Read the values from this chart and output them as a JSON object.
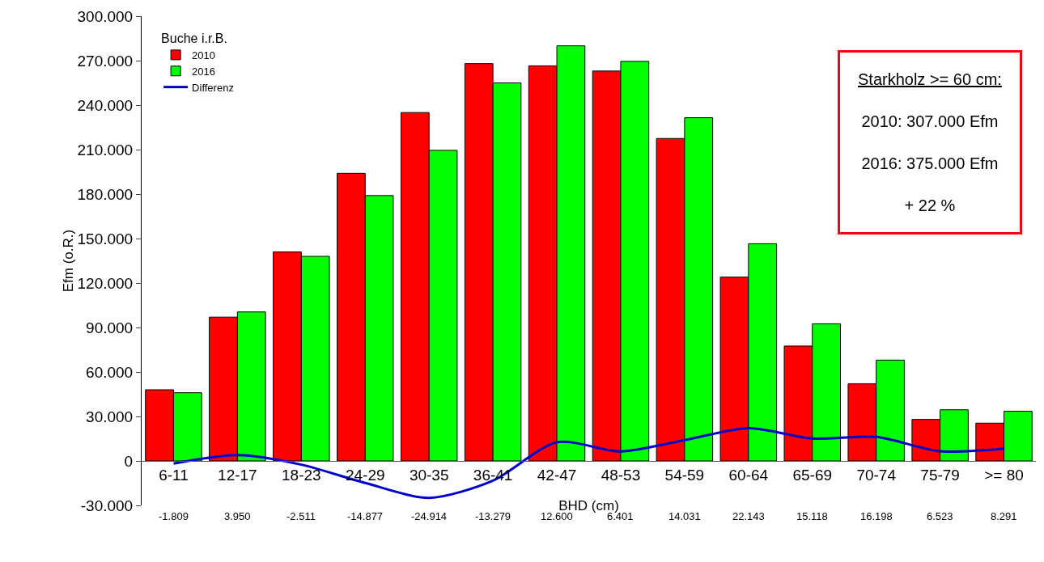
{
  "chart_data": {
    "type": "bar",
    "xlabel": "BHD (cm)",
    "ylabel": "Efm (o.R.)",
    "legend_title": "Buche i.r.B.",
    "categories": [
      "6-11",
      "12-17",
      "18-23",
      "24-29",
      "30-35",
      "36-41",
      "42-47",
      "48-53",
      "54-59",
      "60-64",
      "65-69",
      "70-74",
      "75-79",
      ">= 80"
    ],
    "series": [
      {
        "name": "2010",
        "color": "#ff0000",
        "values": [
          48000,
          97000,
          141000,
          194000,
          235000,
          268000,
          266500,
          263000,
          217500,
          124000,
          77500,
          52000,
          28000,
          25500
        ]
      },
      {
        "name": "2016",
        "color": "#00ff00",
        "values": [
          46000,
          100500,
          138000,
          179000,
          209500,
          255000,
          280000,
          269500,
          231500,
          146500,
          92500,
          68000,
          34500,
          33500
        ]
      },
      {
        "name": "Differenz",
        "type": "line",
        "color": "#0000cc",
        "values": [
          -1809,
          3950,
          -2511,
          -14877,
          -24914,
          -13279,
          12600,
          6401,
          14031,
          22143,
          15118,
          16198,
          6523,
          8291
        ],
        "value_labels": [
          "-1.809",
          "3.950",
          "-2.511",
          "-14.877",
          "-24.914",
          "-13.279",
          "12.600",
          "6.401",
          "14.031",
          "22.143",
          "15.118",
          "16.198",
          "6.523",
          "8.291"
        ]
      }
    ],
    "ylim": [
      -30000,
      300000
    ],
    "yticks": [
      {
        "value": -30000,
        "label": "-30.000"
      },
      0,
      {
        "value": 30000,
        "label": "30.000"
      },
      {
        "value": 60000,
        "label": "60.000"
      },
      {
        "value": 90000,
        "label": "90.000"
      },
      {
        "value": 120000,
        "label": "120.000"
      },
      {
        "value": 150000,
        "label": "150.000"
      },
      {
        "value": 180000,
        "label": "180.000"
      },
      {
        "value": 210000,
        "label": "210.000"
      },
      {
        "value": 240000,
        "label": "240.000"
      },
      {
        "value": 270000,
        "label": "270.000"
      },
      {
        "value": 300000,
        "label": "300.000"
      }
    ],
    "grid": false,
    "legend": "top left",
    "marker": "none",
    "line_style": "solid",
    "annotations": [
      "Starkholz >= 60 cm:\n2010: 307.000 Efm\n2016: 375.000 Efm\n+ 22 %"
    ]
  }
}
